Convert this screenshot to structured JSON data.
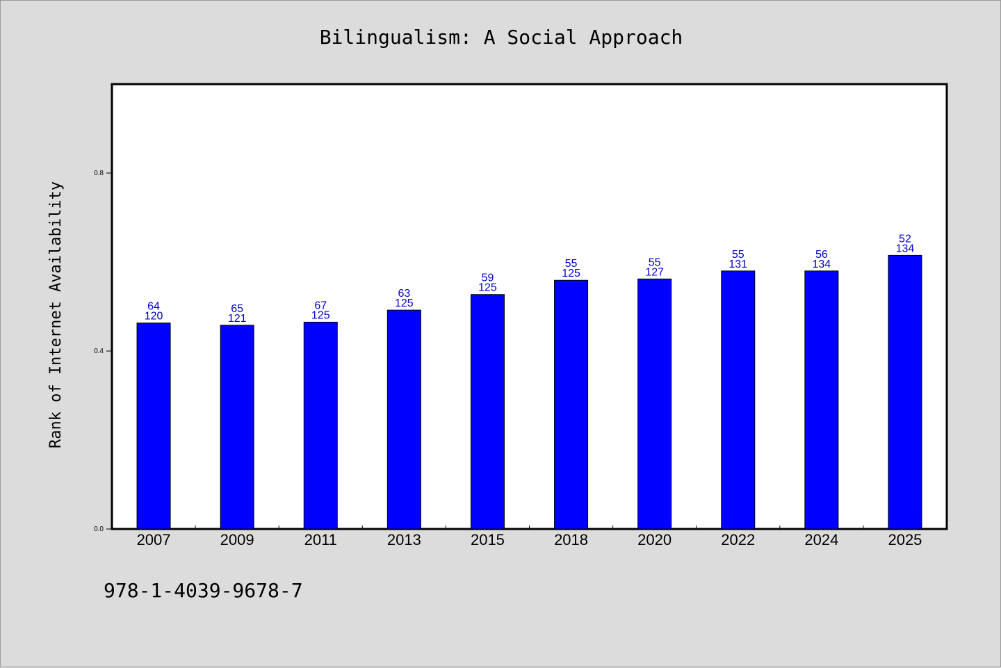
{
  "chart_data": {
    "type": "bar",
    "title": "Bilingualism: A Social Approach",
    "xlabel": "",
    "ylabel": "Rank of Internet Availability",
    "categories": [
      "2007",
      "2009",
      "2011",
      "2013",
      "2015",
      "2018",
      "2020",
      "2022",
      "2024",
      "2025"
    ],
    "values": [
      0.463,
      0.458,
      0.465,
      0.492,
      0.527,
      0.559,
      0.562,
      0.58,
      0.58,
      0.615
    ],
    "label_top": [
      "64",
      "65",
      "67",
      "63",
      "59",
      "55",
      "55",
      "55",
      "56",
      "52"
    ],
    "label_bottom": [
      "120",
      "121",
      "125",
      "125",
      "125",
      "125",
      "127",
      "131",
      "134",
      "134"
    ],
    "yticks": [
      "0.0",
      "0.4",
      "0.8"
    ],
    "ylim": [
      0,
      1
    ],
    "bar_color": "#0000ff",
    "label_color": "#0000cc",
    "grid": false,
    "legend": "none"
  },
  "footer_text": "978-1-4039-9678-7"
}
